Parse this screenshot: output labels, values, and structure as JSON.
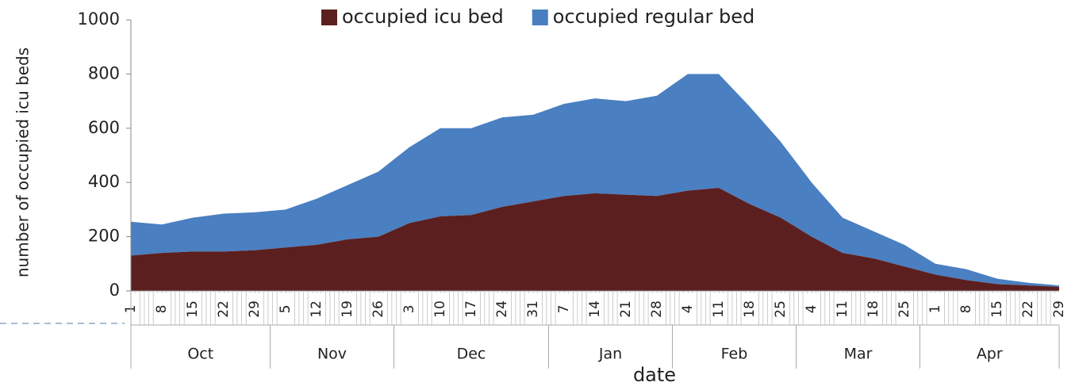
{
  "chart_data": {
    "type": "area",
    "stacked": true,
    "y_label": "number of occupied icu beds",
    "x_label": "date",
    "categories": [
      "1",
      "8",
      "15",
      "22",
      "29",
      "5",
      "12",
      "19",
      "26",
      "3",
      "10",
      "17",
      "24",
      "31",
      "7",
      "14",
      "21",
      "28",
      "4",
      "11",
      "18",
      "25",
      "4",
      "11",
      "18",
      "25",
      "1",
      "8",
      "15",
      "22",
      "29"
    ],
    "months": [
      "Oct",
      "Nov",
      "Dec",
      "Jan",
      "Feb",
      "Mar",
      "Apr"
    ],
    "series": [
      {
        "name": "occupied icu bed",
        "color": "#5c1f1f",
        "values": [
          130,
          140,
          145,
          145,
          150,
          160,
          170,
          190,
          200,
          250,
          275,
          280,
          310,
          330,
          350,
          360,
          355,
          350,
          370,
          380,
          320,
          270,
          200,
          140,
          120,
          90,
          60,
          40,
          25,
          20,
          15
        ]
      },
      {
        "name": "occupied regular bed",
        "color": "#4a7fc1",
        "values": [
          125,
          105,
          125,
          140,
          140,
          140,
          170,
          200,
          240,
          280,
          325,
          320,
          330,
          320,
          340,
          350,
          345,
          370,
          430,
          420,
          360,
          280,
          200,
          130,
          100,
          80,
          40,
          40,
          20,
          10,
          5
        ]
      }
    ],
    "ylim": [
      0,
      1000
    ],
    "yticks": [
      0,
      200,
      400,
      600,
      800,
      1000
    ]
  }
}
